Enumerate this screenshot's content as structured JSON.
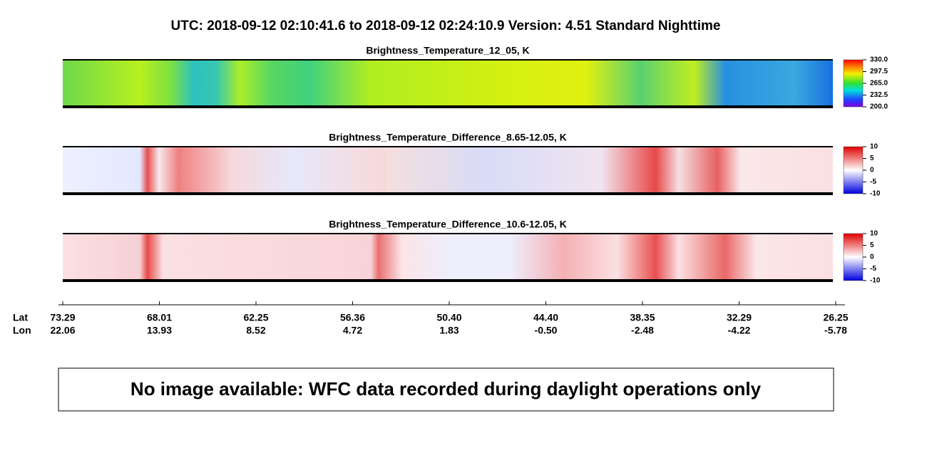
{
  "header": {
    "title": "UTC:  2018-09-12   02:10:41.6  to  2018-09-12   02:24:10.9    Version: 4.51  Standard Nighttime"
  },
  "panels": [
    {
      "title": "Brightness_Temperature_12_05, K",
      "colorbar_ticks": [
        "330.0",
        "297.5",
        "265.0",
        "232.5",
        "200.0"
      ]
    },
    {
      "title": "Brightness_Temperature_Difference_8.65-12.05, K",
      "colorbar_ticks": [
        "10",
        "5",
        "0",
        "-5",
        "-10"
      ]
    },
    {
      "title": "Brightness_Temperature_Difference_10.6-12.05, K",
      "colorbar_ticks": [
        "10",
        "5",
        "0",
        "-5",
        "-10"
      ]
    }
  ],
  "axis": {
    "lat_label": "Lat",
    "lon_label": "Lon",
    "lat": [
      "73.29",
      "68.01",
      "62.25",
      "56.36",
      "50.40",
      "44.40",
      "38.35",
      "32.29",
      "26.25"
    ],
    "lon": [
      "22.06",
      "13.93",
      "8.52",
      "4.72",
      "1.83",
      "-0.50",
      "-2.48",
      "-4.22",
      "-5.78"
    ]
  },
  "notice": "No image available: WFC data recorded during daylight operations only"
}
